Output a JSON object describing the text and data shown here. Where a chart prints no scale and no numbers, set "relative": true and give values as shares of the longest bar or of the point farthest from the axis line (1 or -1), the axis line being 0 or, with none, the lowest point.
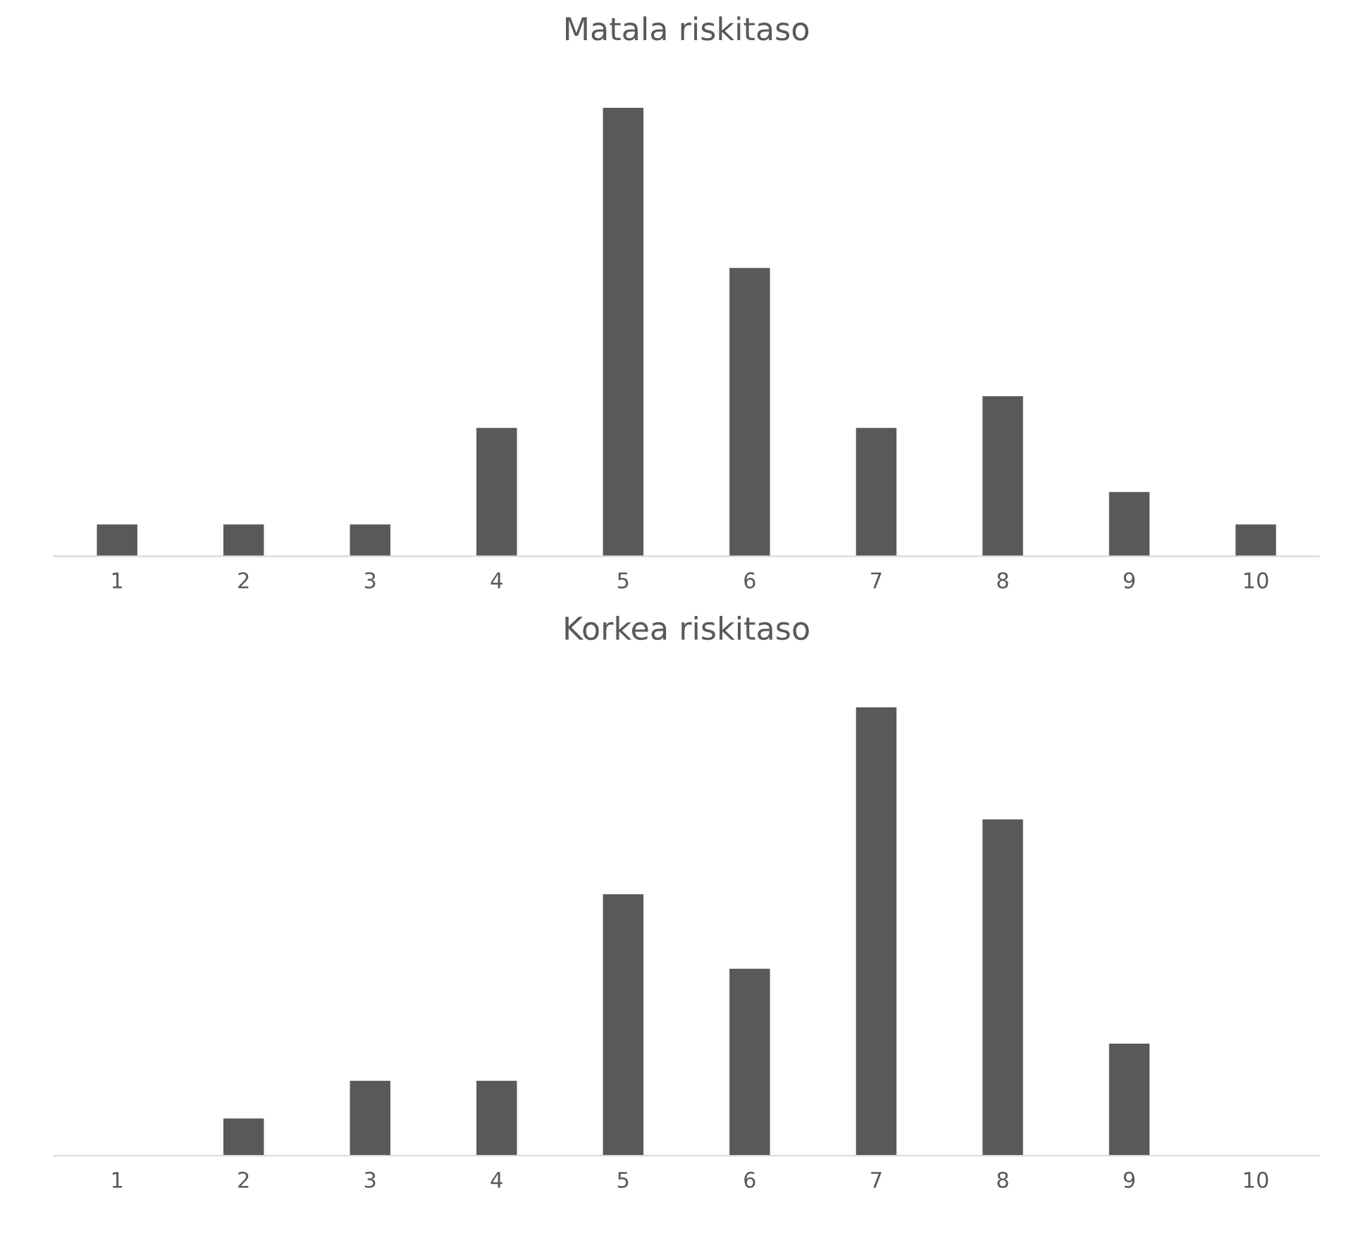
{
  "chart_data": [
    {
      "type": "bar",
      "title": "Matala riskitaso",
      "relative": true,
      "categories": [
        "1",
        "2",
        "3",
        "4",
        "5",
        "6",
        "7",
        "8",
        "9",
        "10"
      ],
      "values": [
        0.071,
        0.071,
        0.071,
        0.286,
        1,
        0.643,
        0.286,
        0.357,
        0.143,
        0.071
      ],
      "color": "#595959",
      "grid": false,
      "legend": false,
      "tick_labels": "x"
    },
    {
      "type": "bar",
      "title": "Korkea riskitaso",
      "relative": true,
      "categories": [
        "1",
        "2",
        "3",
        "4",
        "5",
        "6",
        "7",
        "8",
        "9",
        "10"
      ],
      "values": [
        0,
        0.083,
        0.167,
        0.167,
        0.583,
        0.417,
        1,
        0.75,
        0.25,
        0
      ],
      "color": "#595959",
      "grid": false,
      "legend": false,
      "tick_labels": "x"
    }
  ]
}
